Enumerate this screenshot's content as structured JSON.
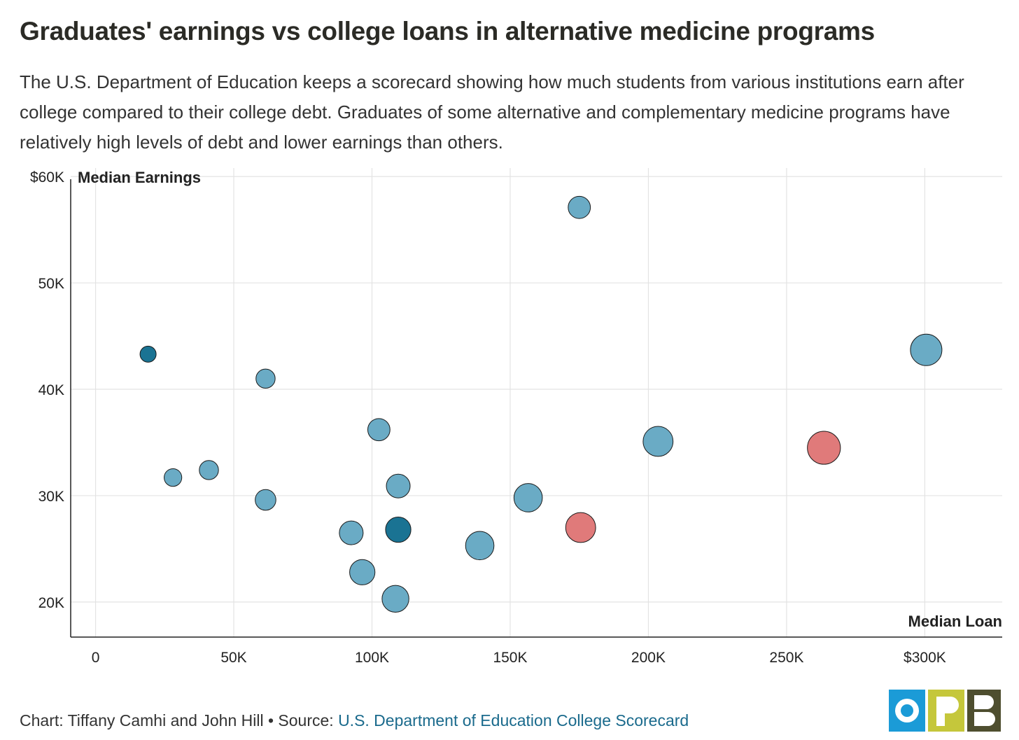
{
  "title": "Graduates' earnings vs college loans in alternative medicine programs",
  "subtitle": "The U.S. Department of Education keeps a scorecard showing how much students from various institutions earn after college compared to their college debt. Graduates of some alternative and complementary medicine programs have relatively high levels of debt and lower earnings than others.",
  "footer": {
    "credit": "Chart: Tiffany Camhi and John Hill • Source: ",
    "source": "U.S. Department of Education College Scorecard"
  },
  "logo": {
    "letters": "OPB",
    "colors": [
      "#1b9bd7",
      "#c5c73b",
      "#4e4e2f"
    ]
  },
  "chart_data": {
    "type": "scatter",
    "xlabel": "Median Loan",
    "ylabel": "Median Earnings",
    "xlim": [
      -9000,
      328000
    ],
    "ylim": [
      16700,
      60800
    ],
    "grid": true,
    "x_ticks": [
      0,
      50000,
      100000,
      150000,
      200000,
      250000,
      300000
    ],
    "x_tick_labels": [
      "0",
      "50K",
      "100K",
      "150K",
      "200K",
      "250K",
      "$300K"
    ],
    "y_ticks": [
      20000,
      30000,
      40000,
      50000,
      60000
    ],
    "y_tick_labels": [
      "20K",
      "30K",
      "40K",
      "50K",
      "$60K"
    ],
    "colors": {
      "default": "#6aabc5",
      "dark": "#1a7393",
      "highlight": "#e07a7a",
      "stroke": "#1b1b1b"
    },
    "points": [
      {
        "x": 19000,
        "y": 43300,
        "size": 0.5,
        "color": "dark"
      },
      {
        "x": 28000,
        "y": 31700,
        "size": 0.6,
        "color": "default"
      },
      {
        "x": 41000,
        "y": 32400,
        "size": 0.7,
        "color": "default"
      },
      {
        "x": 61500,
        "y": 41000,
        "size": 0.7,
        "color": "default"
      },
      {
        "x": 61500,
        "y": 29600,
        "size": 0.8,
        "color": "default"
      },
      {
        "x": 92500,
        "y": 26500,
        "size": 1.0,
        "color": "default"
      },
      {
        "x": 96500,
        "y": 22800,
        "size": 1.1,
        "color": "default"
      },
      {
        "x": 102500,
        "y": 36200,
        "size": 0.9,
        "color": "default"
      },
      {
        "x": 108500,
        "y": 20300,
        "size": 1.2,
        "color": "default"
      },
      {
        "x": 109500,
        "y": 30900,
        "size": 1.0,
        "color": "default"
      },
      {
        "x": 109500,
        "y": 26800,
        "size": 1.1,
        "color": "dark"
      },
      {
        "x": 139000,
        "y": 25300,
        "size": 1.3,
        "color": "default"
      },
      {
        "x": 156500,
        "y": 29800,
        "size": 1.3,
        "color": "default"
      },
      {
        "x": 175000,
        "y": 57100,
        "size": 0.9,
        "color": "default"
      },
      {
        "x": 175500,
        "y": 27000,
        "size": 1.4,
        "color": "highlight"
      },
      {
        "x": 203500,
        "y": 35100,
        "size": 1.4,
        "color": "default"
      },
      {
        "x": 263500,
        "y": 34500,
        "size": 1.6,
        "color": "highlight"
      },
      {
        "x": 300500,
        "y": 43700,
        "size": 1.5,
        "color": "default"
      }
    ]
  }
}
